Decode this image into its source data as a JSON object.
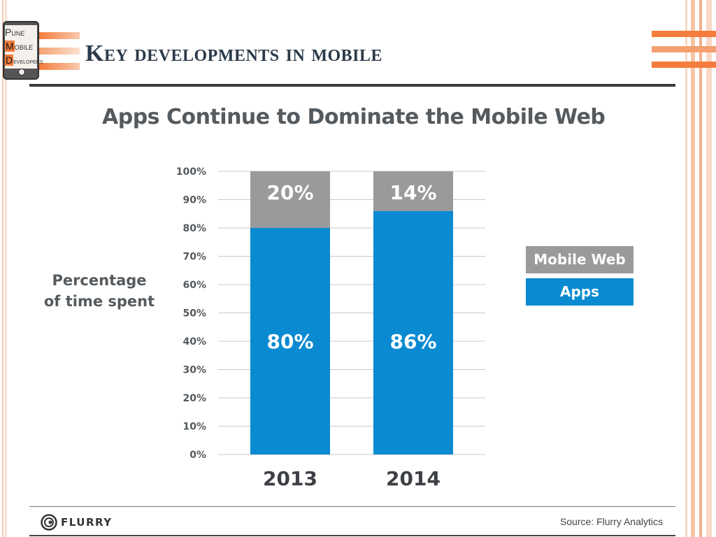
{
  "slide": {
    "title": "Key developments in mobile"
  },
  "logo": {
    "line1_initial": "P",
    "line1_rest": "UNE",
    "line2_initial": "M",
    "line2_rest": "OBILE",
    "line3_initial": "D",
    "line3_rest": "EVELOPERS"
  },
  "footer": {
    "brand": "FLURRY",
    "source": "Source: Flurry Analytics"
  },
  "colors": {
    "apps": "#0a8ad1",
    "mobile_web": "#9a9a9a",
    "accent_orange": "#f47c3c",
    "title": "#2b3a4a"
  },
  "chart_data": {
    "type": "bar",
    "stacked": true,
    "title": "Apps Continue to Dominate the Mobile Web",
    "ylabel": "Percentage of time spent",
    "xlabel": "",
    "categories": [
      "2013",
      "2014"
    ],
    "series": [
      {
        "name": "Apps",
        "values": [
          80,
          86
        ],
        "labels": [
          "80%",
          "86%"
        ],
        "color": "#0a8ad1"
      },
      {
        "name": "Mobile Web",
        "values": [
          20,
          14
        ],
        "labels": [
          "20%",
          "14%"
        ],
        "color": "#9a9a9a"
      }
    ],
    "yticks": [
      "0%",
      "10%",
      "20%",
      "30%",
      "40%",
      "50%",
      "60%",
      "70%",
      "80%",
      "90%",
      "100%"
    ],
    "ylim": [
      0,
      100
    ],
    "grid": true,
    "legend": [
      "Mobile Web",
      "Apps"
    ],
    "legend_position": "right"
  }
}
